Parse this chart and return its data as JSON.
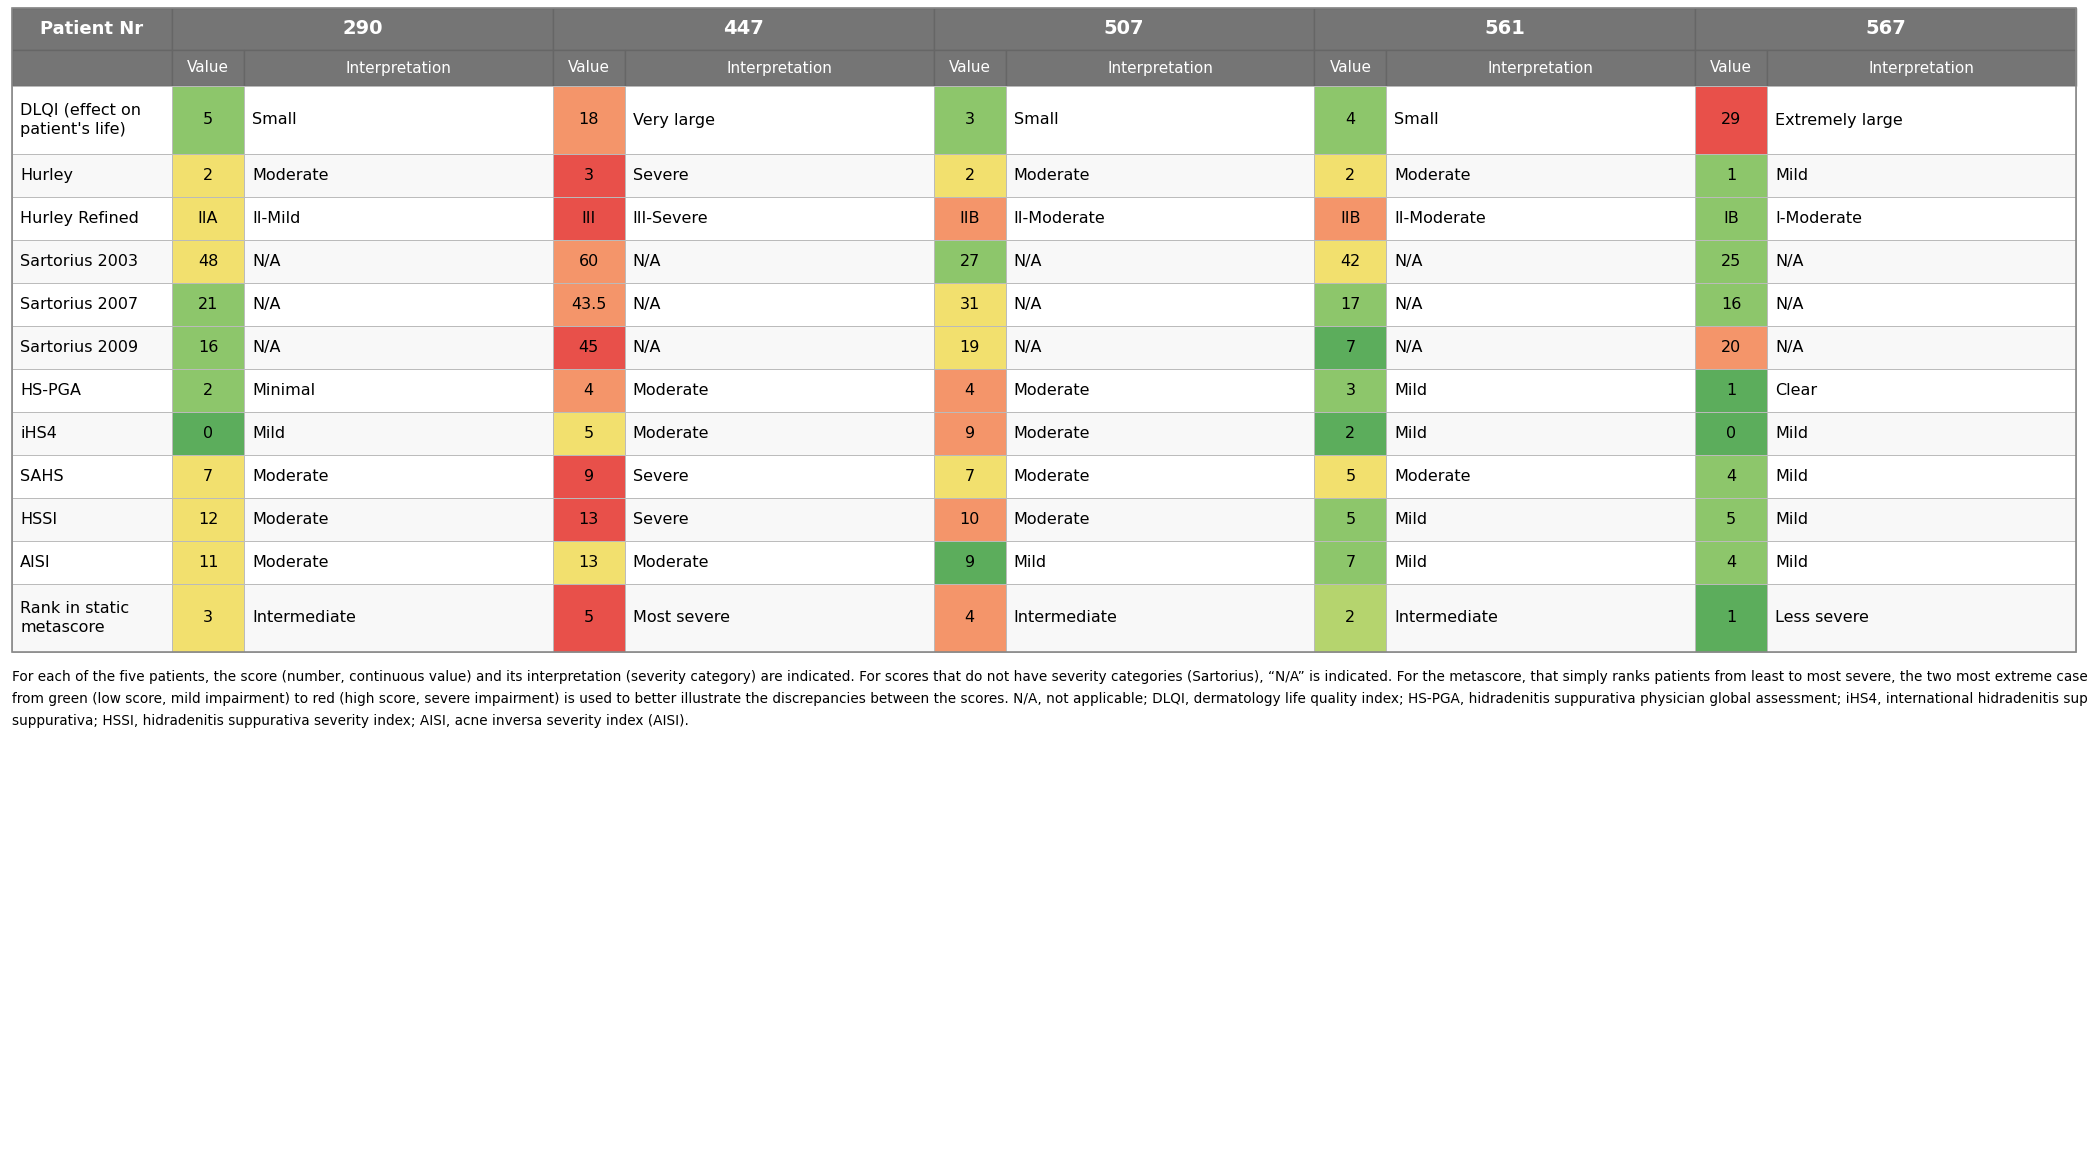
{
  "header_row1": [
    "Patient Nr",
    "290",
    "447",
    "507",
    "561",
    "567"
  ],
  "rows": [
    {
      "label": "DLQI (effect on\npatient's life)",
      "tall": true,
      "data": [
        {
          "value": "5",
          "color": "#8dc66b",
          "interp": "Small"
        },
        {
          "value": "18",
          "color": "#f4956a",
          "interp": "Very large"
        },
        {
          "value": "3",
          "color": "#8dc66b",
          "interp": "Small"
        },
        {
          "value": "4",
          "color": "#8dc66b",
          "interp": "Small"
        },
        {
          "value": "29",
          "color": "#e8504a",
          "interp": "Extremely large"
        }
      ]
    },
    {
      "label": "Hurley",
      "tall": false,
      "data": [
        {
          "value": "2",
          "color": "#f2e06e",
          "interp": "Moderate"
        },
        {
          "value": "3",
          "color": "#e8504a",
          "interp": "Severe"
        },
        {
          "value": "2",
          "color": "#f2e06e",
          "interp": "Moderate"
        },
        {
          "value": "2",
          "color": "#f2e06e",
          "interp": "Moderate"
        },
        {
          "value": "1",
          "color": "#8dc66b",
          "interp": "Mild"
        }
      ]
    },
    {
      "label": "Hurley Refined",
      "tall": false,
      "data": [
        {
          "value": "IIA",
          "color": "#f2e06e",
          "interp": "II-Mild"
        },
        {
          "value": "III",
          "color": "#e8504a",
          "interp": "III-Severe"
        },
        {
          "value": "IIB",
          "color": "#f4956a",
          "interp": "II-Moderate"
        },
        {
          "value": "IIB",
          "color": "#f4956a",
          "interp": "II-Moderate"
        },
        {
          "value": "IB",
          "color": "#8dc66b",
          "interp": "I-Moderate"
        }
      ]
    },
    {
      "label": "Sartorius 2003",
      "tall": false,
      "data": [
        {
          "value": "48",
          "color": "#f2e06e",
          "interp": "N/A"
        },
        {
          "value": "60",
          "color": "#f4956a",
          "interp": "N/A"
        },
        {
          "value": "27",
          "color": "#8dc66b",
          "interp": "N/A"
        },
        {
          "value": "42",
          "color": "#f2e06e",
          "interp": "N/A"
        },
        {
          "value": "25",
          "color": "#8dc66b",
          "interp": "N/A"
        }
      ]
    },
    {
      "label": "Sartorius 2007",
      "tall": false,
      "data": [
        {
          "value": "21",
          "color": "#8dc66b",
          "interp": "N/A"
        },
        {
          "value": "43.5",
          "color": "#f4956a",
          "interp": "N/A"
        },
        {
          "value": "31",
          "color": "#f2e06e",
          "interp": "N/A"
        },
        {
          "value": "17",
          "color": "#8dc66b",
          "interp": "N/A"
        },
        {
          "value": "16",
          "color": "#8dc66b",
          "interp": "N/A"
        }
      ]
    },
    {
      "label": "Sartorius 2009",
      "tall": false,
      "data": [
        {
          "value": "16",
          "color": "#8dc66b",
          "interp": "N/A"
        },
        {
          "value": "45",
          "color": "#e8504a",
          "interp": "N/A"
        },
        {
          "value": "19",
          "color": "#f2e06e",
          "interp": "N/A"
        },
        {
          "value": "7",
          "color": "#5cad5c",
          "interp": "N/A"
        },
        {
          "value": "20",
          "color": "#f4956a",
          "interp": "N/A"
        }
      ]
    },
    {
      "label": "HS-PGA",
      "tall": false,
      "data": [
        {
          "value": "2",
          "color": "#8dc66b",
          "interp": "Minimal"
        },
        {
          "value": "4",
          "color": "#f4956a",
          "interp": "Moderate"
        },
        {
          "value": "4",
          "color": "#f4956a",
          "interp": "Moderate"
        },
        {
          "value": "3",
          "color": "#8dc66b",
          "interp": "Mild"
        },
        {
          "value": "1",
          "color": "#5cad5c",
          "interp": "Clear"
        }
      ]
    },
    {
      "label": "iHS4",
      "tall": false,
      "data": [
        {
          "value": "0",
          "color": "#5cad5c",
          "interp": "Mild"
        },
        {
          "value": "5",
          "color": "#f2e06e",
          "interp": "Moderate"
        },
        {
          "value": "9",
          "color": "#f4956a",
          "interp": "Moderate"
        },
        {
          "value": "2",
          "color": "#5cad5c",
          "interp": "Mild"
        },
        {
          "value": "0",
          "color": "#5cad5c",
          "interp": "Mild"
        }
      ]
    },
    {
      "label": "SAHS",
      "tall": false,
      "data": [
        {
          "value": "7",
          "color": "#f2e06e",
          "interp": "Moderate"
        },
        {
          "value": "9",
          "color": "#e8504a",
          "interp": "Severe"
        },
        {
          "value": "7",
          "color": "#f2e06e",
          "interp": "Moderate"
        },
        {
          "value": "5",
          "color": "#f2e06e",
          "interp": "Moderate"
        },
        {
          "value": "4",
          "color": "#8dc66b",
          "interp": "Mild"
        }
      ]
    },
    {
      "label": "HSSI",
      "tall": false,
      "data": [
        {
          "value": "12",
          "color": "#f2e06e",
          "interp": "Moderate"
        },
        {
          "value": "13",
          "color": "#e8504a",
          "interp": "Severe"
        },
        {
          "value": "10",
          "color": "#f4956a",
          "interp": "Moderate"
        },
        {
          "value": "5",
          "color": "#8dc66b",
          "interp": "Mild"
        },
        {
          "value": "5",
          "color": "#8dc66b",
          "interp": "Mild"
        }
      ]
    },
    {
      "label": "AISI",
      "tall": false,
      "data": [
        {
          "value": "11",
          "color": "#f2e06e",
          "interp": "Moderate"
        },
        {
          "value": "13",
          "color": "#f2e06e",
          "interp": "Moderate"
        },
        {
          "value": "9",
          "color": "#5cad5c",
          "interp": "Mild"
        },
        {
          "value": "7",
          "color": "#8dc66b",
          "interp": "Mild"
        },
        {
          "value": "4",
          "color": "#8dc66b",
          "interp": "Mild"
        }
      ]
    },
    {
      "label": "Rank in static\nmetascore",
      "tall": true,
      "data": [
        {
          "value": "3",
          "color": "#f2e06e",
          "interp": "Intermediate"
        },
        {
          "value": "5",
          "color": "#e8504a",
          "interp": "Most severe"
        },
        {
          "value": "4",
          "color": "#f4956a",
          "interp": "Intermediate"
        },
        {
          "value": "2",
          "color": "#b5d46e",
          "interp": "Intermediate"
        },
        {
          "value": "1",
          "color": "#5cad5c",
          "interp": "Less severe"
        }
      ]
    }
  ],
  "header_bg": "#757575",
  "header_text_color": "#ffffff",
  "footnote_lines": [
    "For each of the five patients, the score (number, continuous value) and its interpretation (severity category) are indicated. For scores that do not have severity categories (Sartorius), “N/A” is indicated. For the metascore, that simply ranks patients from least to most severe, the two most extreme cases were specified, and the others were indicated as “intermediate”. A color gradient",
    "from green (low score, mild impairment) to red (high score, severe impairment) is used to better illustrate the discrepancies between the scores. N/A, not applicable; DLQI, dermatology life quality index; HS-PGA, hidradenitis suppurativa physician global assessment; iHS4, international hidradenitis suppurativa severity scoring system; SAHS, severity assessment of hidradenitis",
    "suppurativa; HSSI, hidradenitis suppurativa severity index; AISI, acne inversa severity index (AISI)."
  ]
}
